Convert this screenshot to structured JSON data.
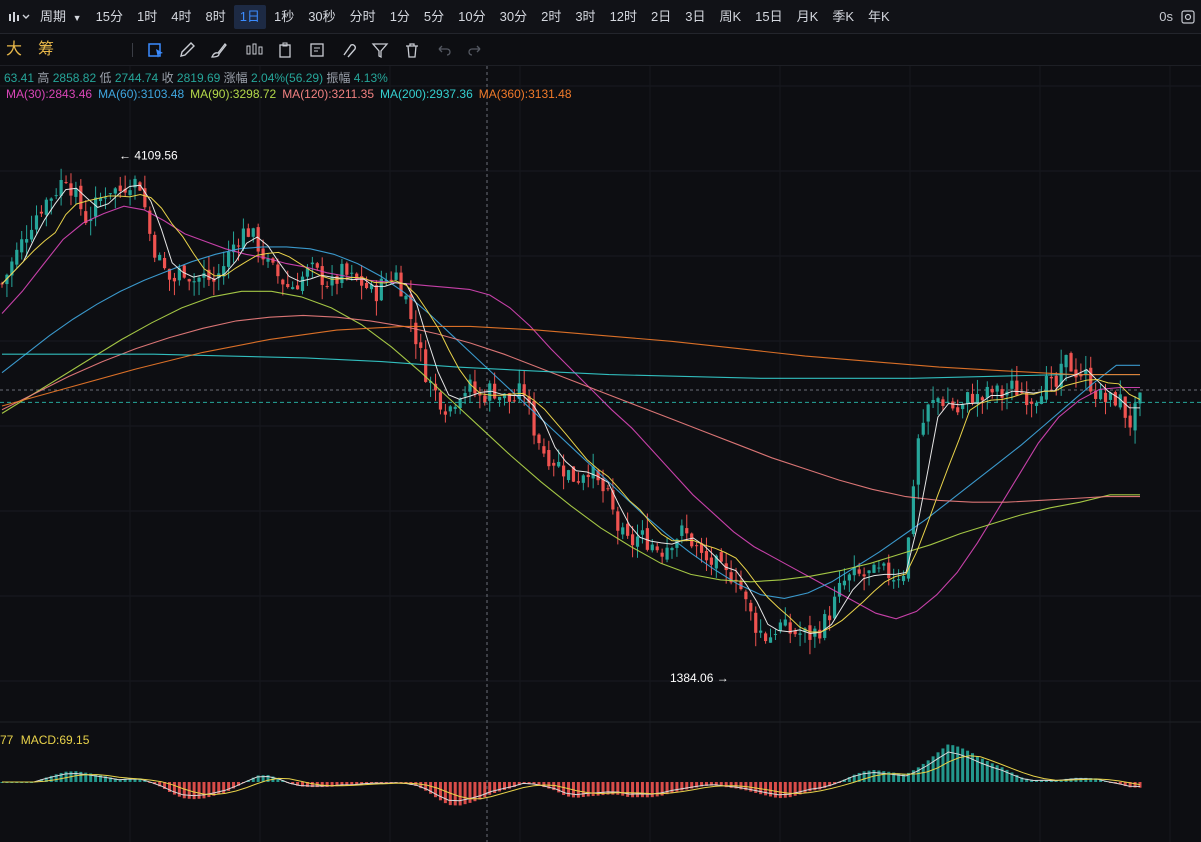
{
  "toolbar": {
    "period_label": "周期",
    "intervals": [
      "15分",
      "1时",
      "4时",
      "8时",
      "1日",
      "1秒",
      "30秒",
      "分时",
      "1分",
      "5分",
      "10分",
      "30分",
      "2时",
      "3时",
      "12时",
      "2日",
      "3日",
      "周K",
      "15日",
      "月K",
      "季K",
      "年K"
    ],
    "active_interval": "1日",
    "right_text": "0s"
  },
  "drawing_bar": {
    "label_a": "大",
    "label_b": "筹",
    "tools": [
      "select-icon",
      "pen-icon",
      "brush-icon",
      "candles-icon",
      "clipboard-icon",
      "note-icon",
      "magnet-icon",
      "filter-icon",
      "trash-icon",
      "undo-icon",
      "redo-icon"
    ]
  },
  "ohlc": {
    "open_partial": "63.41",
    "high_label": "高",
    "high": "2858.82",
    "low_label": "低",
    "low": "2744.74",
    "close_label": "收",
    "close": "2819.69",
    "change_label": "涨幅",
    "change": "2.04%(56.29)",
    "amp_label": "振幅",
    "amp": "4.13%"
  },
  "ma_legend": [
    {
      "text": "MA(30):2843.46",
      "color": "#d946b8"
    },
    {
      "text": "MA(60):3103.48",
      "color": "#3fa7e0"
    },
    {
      "text": "MA(90):3298.72",
      "color": "#b4d94a"
    },
    {
      "text": "MA(120):3211.35",
      "color": "#f08080"
    },
    {
      "text": "MA(200):2937.36",
      "color": "#35d0d0"
    },
    {
      "text": "MA(360):3131.48",
      "color": "#f07a2a"
    }
  ],
  "annotations": {
    "high_mark": "4109.56",
    "low_mark": "1384.06"
  },
  "macd": {
    "prefix": "77",
    "label": "MACD:69.15",
    "prefix_color": "#e8d24a",
    "label_color": "#e8d24a"
  },
  "colors": {
    "up": "#26a69a",
    "down": "#ef5350"
  },
  "chart_data": {
    "type": "candlestick",
    "interval": "1日",
    "price_range": [
      1200,
      4400
    ],
    "marked_high": 4109.56,
    "marked_low": 1384.06,
    "close_series": [
      3460,
      3580,
      3700,
      3820,
      3900,
      3960,
      4050,
      3920,
      3800,
      3900,
      3980,
      3960,
      4020,
      4000,
      3700,
      3560,
      3460,
      3550,
      3480,
      3500,
      3470,
      3580,
      3700,
      3760,
      3680,
      3560,
      3500,
      3440,
      3480,
      3540,
      3500,
      3450,
      3520,
      3480,
      3460,
      3400,
      3480,
      3520,
      3380,
      3150,
      2950,
      2850,
      2780,
      2880,
      2900,
      2840,
      2900,
      2850,
      2820,
      2900,
      2680,
      2550,
      2500,
      2450,
      2400,
      2480,
      2380,
      2300,
      2120,
      2050,
      2100,
      2060,
      2020,
      2080,
      2120,
      2060,
      1960,
      1950,
      1880,
      1900,
      1720,
      1600,
      1540,
      1620,
      1580,
      1570,
      1560,
      1600,
      1700,
      1840,
      1880,
      1880,
      1890,
      1900,
      1880,
      1920,
      2600,
      2780,
      2840,
      2820,
      2760,
      2860,
      2830,
      2880,
      2860,
      2900,
      2870,
      2840,
      2930,
      2880,
      3040,
      2990,
      2960,
      2860,
      2820,
      2850,
      2700,
      2819.69
    ],
    "series": [
      {
        "name": "MA(30)",
        "last": 2843.46,
        "values": [
          3300,
          3420,
          3560,
          3700,
          3790,
          3840,
          3880,
          3860,
          3800,
          3730,
          3690,
          3650,
          3620,
          3600,
          3570,
          3550,
          3520,
          3500,
          3480,
          3470,
          3460,
          3450,
          3440,
          3430,
          3400,
          3330,
          3230,
          3110,
          3000,
          2890,
          2780,
          2680,
          2560,
          2440,
          2320,
          2220,
          2120,
          2040,
          1980,
          1920,
          1860,
          1800,
          1740,
          1680,
          1650,
          1690,
          1780,
          1900,
          2060,
          2240,
          2420,
          2600,
          2740,
          2830,
          2890,
          2900,
          2843.46
        ]
      },
      {
        "name": "MA(60)",
        "last": 3103.48,
        "values": [
          2980,
          3080,
          3180,
          3270,
          3350,
          3420,
          3480,
          3530,
          3580,
          3620,
          3650,
          3660,
          3660,
          3650,
          3620,
          3570,
          3500,
          3410,
          3300,
          3180,
          3060,
          2940,
          2820,
          2700,
          2580,
          2460,
          2340,
          2220,
          2110,
          2010,
          1920,
          1840,
          1780,
          1760,
          1790,
          1850,
          1930,
          2010,
          2100,
          2190,
          2290,
          2390,
          2490,
          2590,
          2700,
          2810,
          2920,
          3020,
          3103.48
        ]
      },
      {
        "name": "MA(90)",
        "last": 3298.72,
        "values": [
          2760,
          2860,
          2960,
          3060,
          3160,
          3250,
          3330,
          3390,
          3420,
          3420,
          3390,
          3330,
          3240,
          3120,
          2980,
          2830,
          2680,
          2530,
          2390,
          2260,
          2140,
          2040,
          1950,
          1890,
          1860,
          1850,
          1860,
          1880,
          1910,
          1950,
          2000,
          2050,
          2110,
          2160,
          2210,
          2250,
          2280,
          2320,
          3298.72
        ]
      },
      {
        "name": "MA(120)",
        "last": 3211.35,
        "values": [
          2780,
          2870,
          2960,
          3040,
          3110,
          3170,
          3220,
          3260,
          3280,
          3290,
          3280,
          3260,
          3230,
          3190,
          3140,
          3080,
          3010,
          2940,
          2870,
          2800,
          2730,
          2660,
          2590,
          2520,
          2460,
          2400,
          2350,
          2310,
          2290,
          2280,
          2280,
          2290,
          2300,
          2310,
          3211.35
        ]
      },
      {
        "name": "MA(200)",
        "last": 2937.36,
        "values": [
          3080,
          3080,
          3080,
          3070,
          3060,
          3040,
          3010,
          2990,
          2970,
          2960,
          2950,
          2950,
          2950,
          2960,
          2970,
          2937.36
        ]
      },
      {
        "name": "MA(360)",
        "last": 3131.48,
        "values": [
          2800,
          2900,
          3000,
          3090,
          3160,
          3210,
          3230,
          3230,
          3210,
          3180,
          3150,
          3110,
          3070,
          3040,
          3010,
          2990,
          2970,
          3131.48
        ]
      }
    ],
    "macd_value": 69.15
  }
}
